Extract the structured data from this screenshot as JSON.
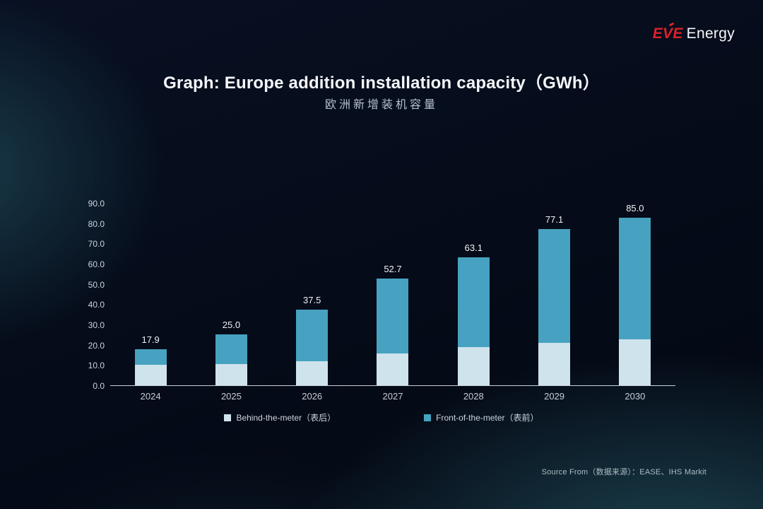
{
  "logo": {
    "brand": "EVE",
    "suffix": "Energy"
  },
  "title": "Graph: Europe addition installation capacity（GWh）",
  "subtitle": "欧洲新增装机容量",
  "source": "Source From（数据来源）：EASE、IHS Markit",
  "colors": {
    "background": "#050b18",
    "accent_red": "#d9222a",
    "behind_the_meter": "#cfe3ec",
    "front_of_the_meter": "#46a2c0",
    "axis_line": "#c9d1da"
  },
  "legend": [
    {
      "label": "Behind-the-meter（表后）",
      "color": "#cfe3ec"
    },
    {
      "label": "Front-of-the-meter（表前）",
      "color": "#46a2c0"
    }
  ],
  "chart_data": {
    "type": "bar",
    "stacked": true,
    "title": "Graph: Europe addition installation capacity（GWh）",
    "subtitle": "欧洲新增装机容量",
    "categories": [
      "2024",
      "2025",
      "2026",
      "2027",
      "2028",
      "2029",
      "2030"
    ],
    "series": [
      {
        "name": "Behind-the-meter（表后）",
        "color": "#cfe3ec",
        "values": [
          10.0,
          10.4,
          11.7,
          15.8,
          18.9,
          21.0,
          23.2
        ]
      },
      {
        "name": "Front-of-the-meter（表前）",
        "color": "#46a2c0",
        "values": [
          7.9,
          14.6,
          25.8,
          36.9,
          44.2,
          56.1,
          61.8
        ]
      }
    ],
    "totals": [
      17.9,
      25.0,
      37.5,
      52.7,
      63.1,
      77.1,
      85.0
    ],
    "total_labels": [
      "17.9",
      "25.0",
      "37.5",
      "52.7",
      "63.1",
      "77.1",
      "85.0"
    ],
    "xlabel": "",
    "ylabel": "",
    "ylim": [
      0,
      90
    ],
    "y_tick_step": 10,
    "y_ticks": [
      "0.0",
      "10.0",
      "20.0",
      "30.0",
      "40.0",
      "50.0",
      "60.0",
      "70.0",
      "80.0",
      "90.0"
    ],
    "grid": false,
    "legend_position": "bottom",
    "data_labels": "total-only"
  }
}
